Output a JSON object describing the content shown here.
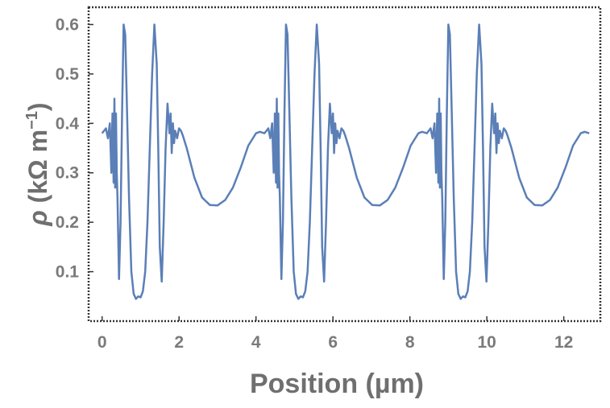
{
  "chart_data": {
    "type": "line",
    "title": "",
    "xlabel": "Position (µm)",
    "ylabel": {
      "symbol": "ρ",
      "unit_open": " (kΩ m",
      "exponent": "−1",
      "unit_close": ")"
    },
    "xlim": [
      -0.35,
      12.95
    ],
    "ylim": [
      0.0,
      0.635
    ],
    "x_ticks": [
      0,
      2,
      4,
      6,
      8,
      10,
      12
    ],
    "x_tick_labels": [
      "0",
      "2",
      "4",
      "6",
      "8",
      "10",
      "12"
    ],
    "y_ticks": [
      0.1,
      0.2,
      0.3,
      0.4,
      0.5,
      0.6
    ],
    "y_tick_labels": [
      "0.1",
      "0.2",
      "0.3",
      "0.4",
      "0.5",
      "0.6"
    ],
    "grid": false,
    "frame": "dotted",
    "series": [
      {
        "color": "#5b7fb7",
        "period": 4.22,
        "x": [
          0.0,
          0.1,
          0.15,
          0.2,
          0.24,
          0.27,
          0.3,
          0.32,
          0.34,
          0.36,
          0.38,
          0.4,
          0.44,
          0.48,
          0.52,
          0.56,
          0.6,
          0.64,
          0.7,
          0.76,
          0.82,
          0.88,
          0.94,
          1.0,
          1.06,
          1.12,
          1.18,
          1.24,
          1.3,
          1.36,
          1.42,
          1.46,
          1.5,
          1.55,
          1.6,
          1.65,
          1.7,
          1.75,
          1.78,
          1.81,
          1.84,
          1.87,
          1.9,
          1.95,
          2.0,
          2.05,
          2.1,
          2.2,
          2.4,
          2.6,
          2.8,
          3.0,
          3.2,
          3.4,
          3.6,
          3.8,
          4.0,
          4.1,
          4.22
        ],
        "y": [
          0.38,
          0.39,
          0.37,
          0.4,
          0.3,
          0.42,
          0.28,
          0.45,
          0.27,
          0.42,
          0.3,
          0.25,
          0.085,
          0.2,
          0.42,
          0.6,
          0.58,
          0.45,
          0.25,
          0.1,
          0.055,
          0.045,
          0.05,
          0.048,
          0.06,
          0.1,
          0.2,
          0.35,
          0.5,
          0.6,
          0.52,
          0.35,
          0.15,
          0.08,
          0.2,
          0.35,
          0.44,
          0.38,
          0.42,
          0.34,
          0.4,
          0.36,
          0.385,
          0.37,
          0.39,
          0.385,
          0.375,
          0.35,
          0.29,
          0.25,
          0.235,
          0.234,
          0.245,
          0.27,
          0.31,
          0.355,
          0.38,
          0.383,
          0.38
        ]
      }
    ]
  }
}
